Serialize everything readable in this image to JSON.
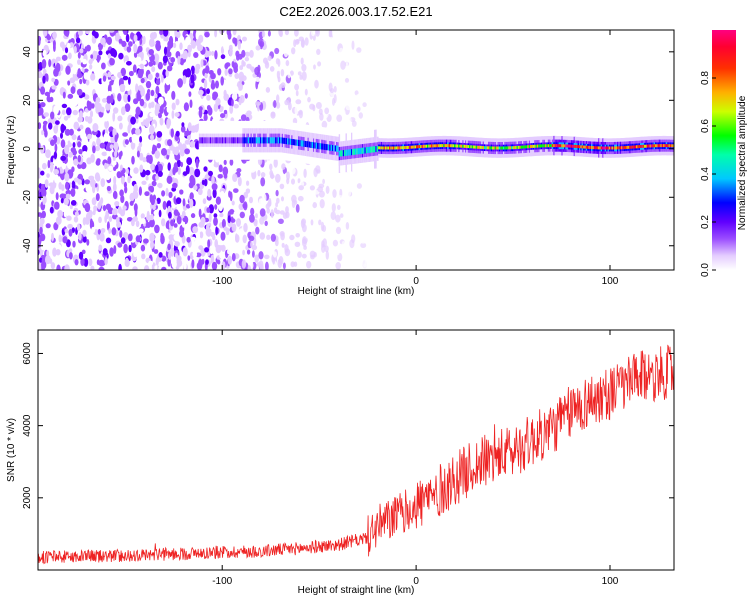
{
  "figure_title": "C2E2.2026.003.17.52.E21",
  "chart_data": [
    {
      "type": "heatmap",
      "title": "C2E2.2026.003.17.52.E21",
      "xlabel": "Height of straight line (km)",
      "ylabel": "Frequency (Hz)",
      "xlim": [
        -195,
        133
      ],
      "ylim": [
        -50,
        49
      ],
      "xticks": [
        -100,
        0,
        100
      ],
      "xtick_labels": [
        "-100",
        "0",
        "100"
      ],
      "yticks": [
        -40,
        -20,
        0,
        20,
        40
      ],
      "ytick_labels": [
        "-40",
        "-20",
        "0",
        "20",
        "40"
      ],
      "colorbar": {
        "label": "Normalized spectral amplitude",
        "range": [
          0,
          1
        ],
        "ticks": [
          0.0,
          0.2,
          0.4,
          0.6,
          0.8
        ],
        "tick_labels": [
          "0.0",
          "0.2",
          "0.4",
          "0.6",
          "0.8"
        ],
        "colormap": [
          "#ffffff",
          "#d9b8ff",
          "#7b00ff",
          "#0000ff",
          "#00ffff",
          "#00ff00",
          "#ffff00",
          "#ff8000",
          "#ff0000",
          "#ff1080"
        ]
      },
      "description_points": [
        {
          "height_km": -90,
          "frequency_hz": 3.5,
          "amplitude": 0.35
        },
        {
          "height_km": -60,
          "frequency_hz": 1.0,
          "amplitude": 0.45
        },
        {
          "height_km": -35,
          "frequency_hz": -2.0,
          "amplitude": 0.4
        },
        {
          "height_km": 0,
          "frequency_hz": 0.5,
          "amplitude": 0.9
        },
        {
          "height_km": 50,
          "frequency_hz": 0.3,
          "amplitude": 0.7
        },
        {
          "height_km": 85,
          "frequency_hz": 1.5,
          "amplitude": 1.0
        },
        {
          "height_km": 125,
          "frequency_hz": 1.5,
          "amplitude": 0.9
        }
      ]
    },
    {
      "type": "line",
      "xlabel": "Height of straight line (km)",
      "ylabel": "SNR (10 * v/v)",
      "xlim": [
        -195,
        133
      ],
      "ylim": [
        0,
        6650
      ],
      "xticks": [
        -100,
        0,
        100
      ],
      "xtick_labels": [
        "-100",
        "0",
        "100"
      ],
      "yticks": [
        2000,
        4000,
        6000
      ],
      "ytick_labels": [
        "2000",
        "4000",
        "6000"
      ],
      "color": "#ee2222",
      "series": [
        {
          "name": "SNR",
          "x": [
            -195,
            -150,
            -120,
            -100,
            -80,
            -60,
            -40,
            -25,
            -20,
            -10,
            0,
            10,
            20,
            30,
            40,
            50,
            60,
            70,
            80,
            90,
            100,
            110,
            120,
            133
          ],
          "values": [
            350,
            400,
            450,
            500,
            520,
            600,
            700,
            900,
            1200,
            1500,
            1800,
            2100,
            2500,
            2900,
            3100,
            3300,
            3600,
            3900,
            4400,
            4700,
            4900,
            5200,
            5400,
            5500
          ]
        }
      ]
    }
  ]
}
